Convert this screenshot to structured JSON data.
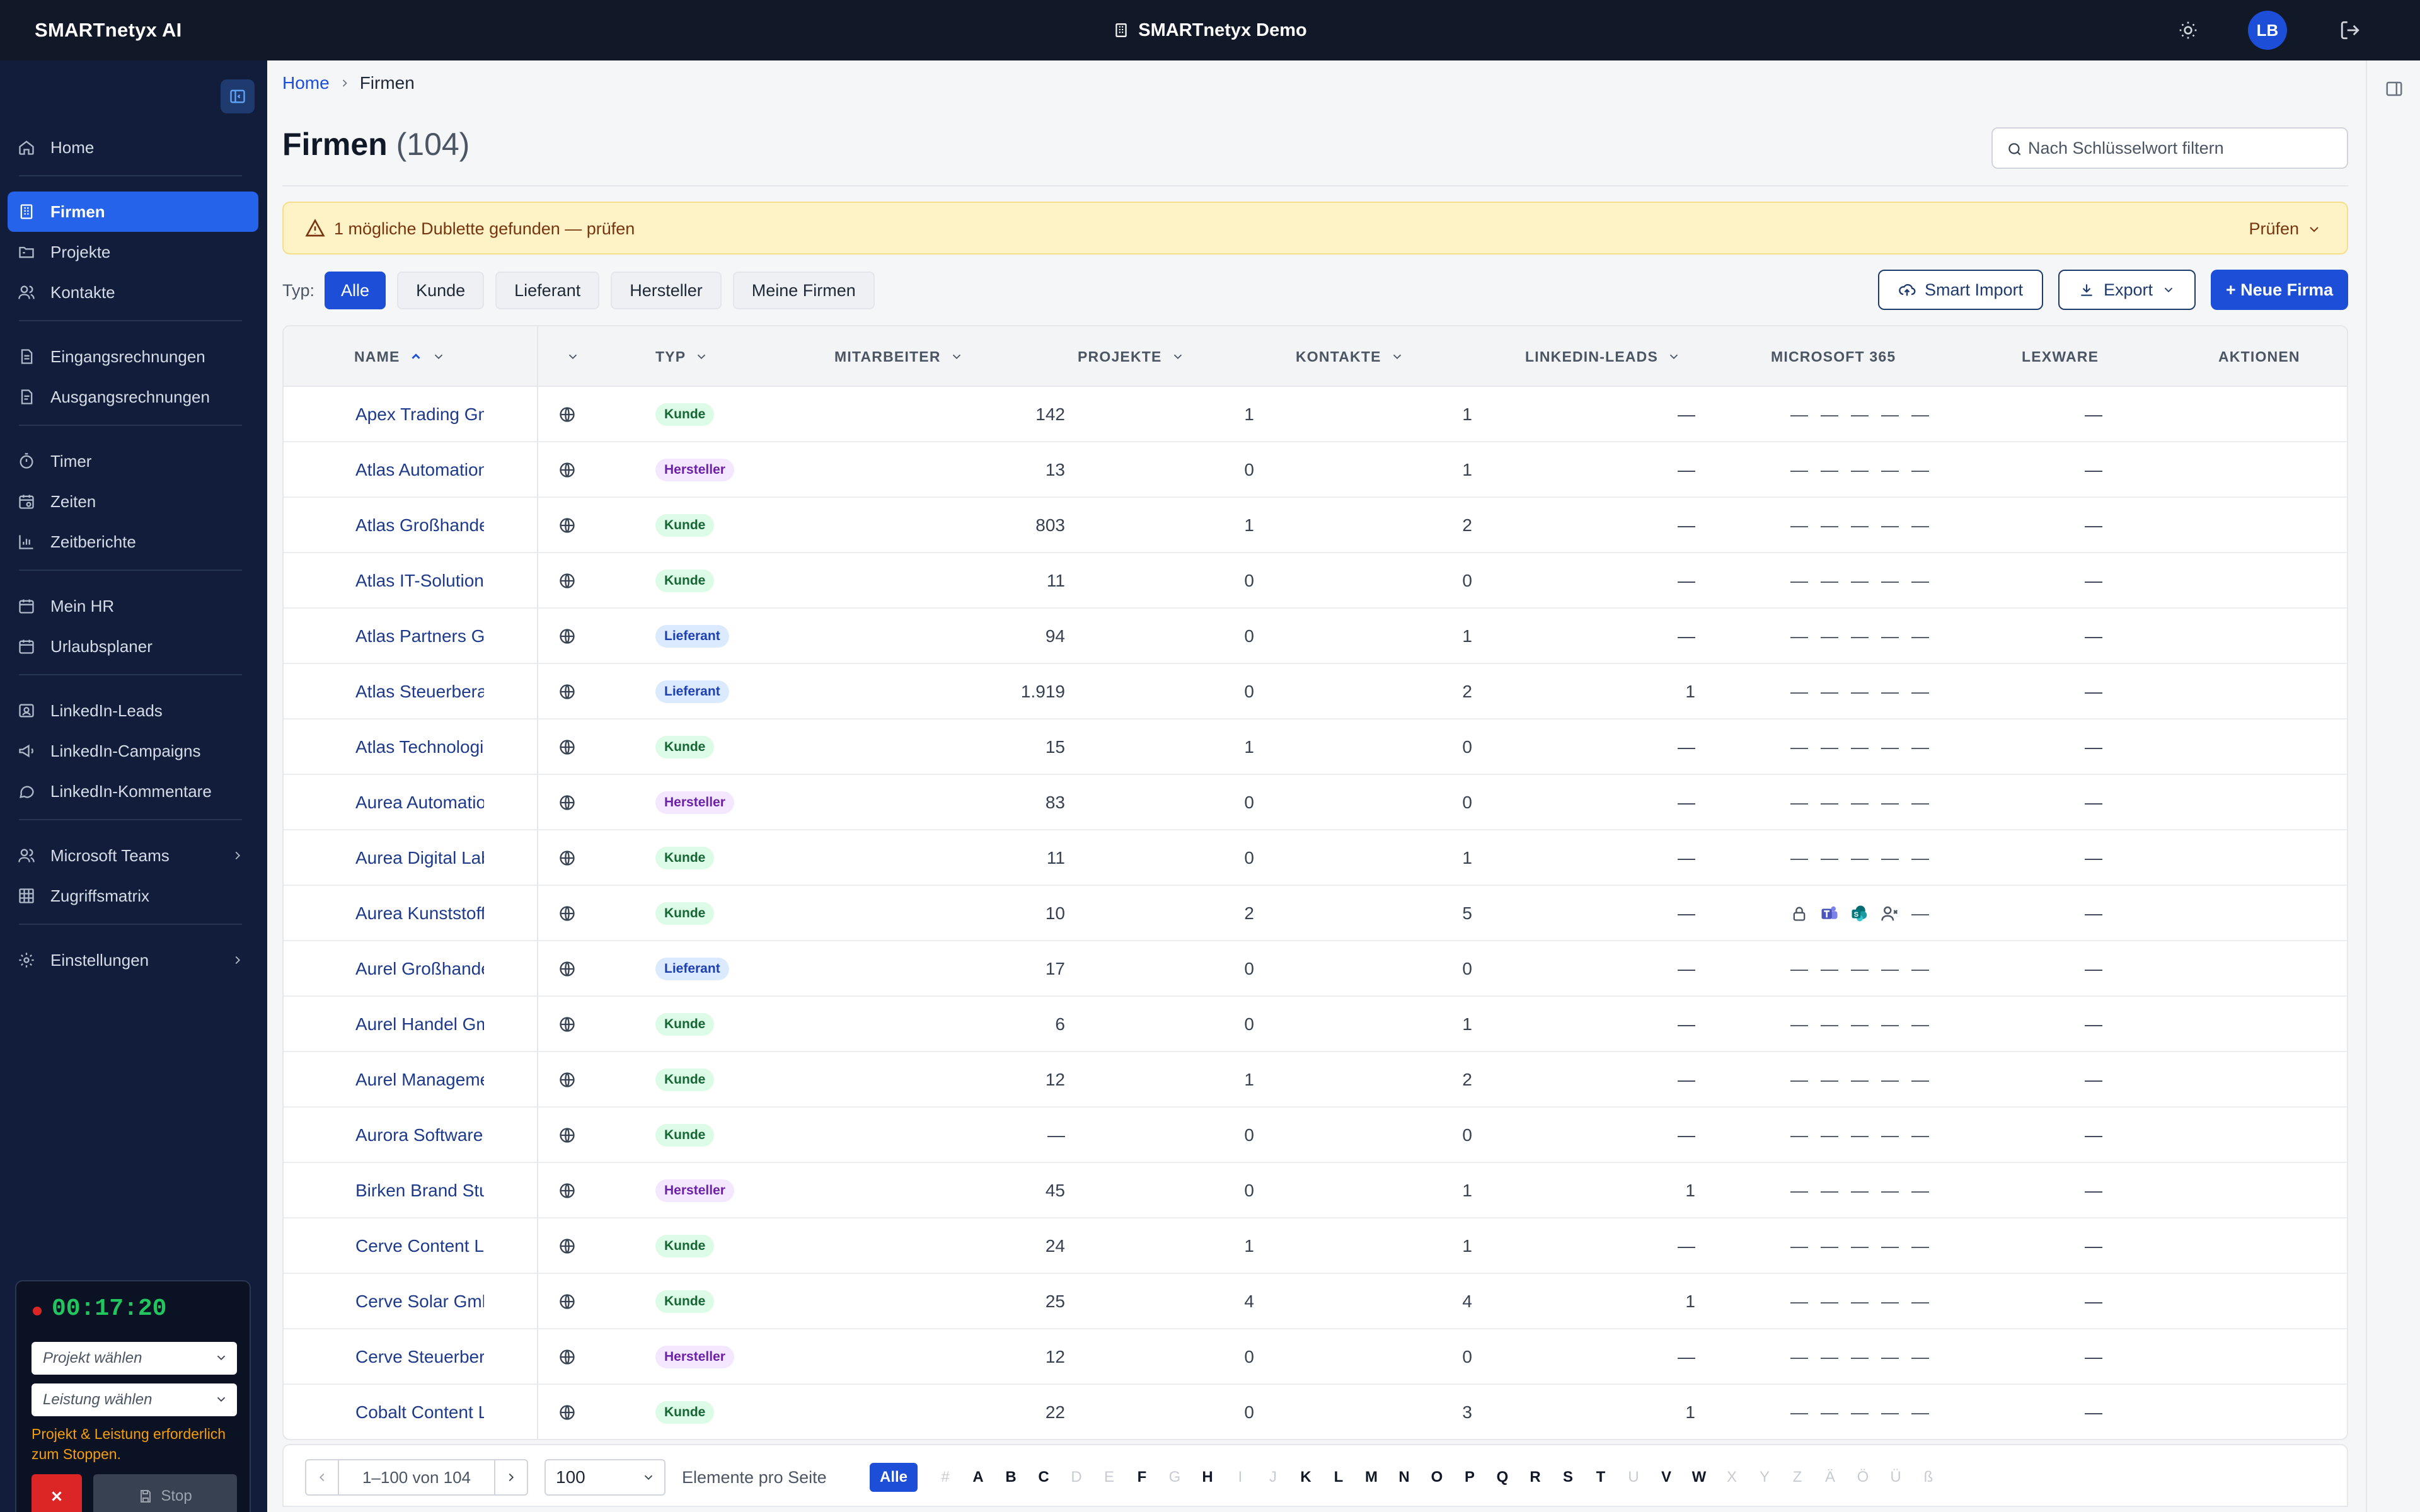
{
  "app": {
    "brand": "SMARTnetyx AI",
    "tenant": "SMARTnetyx Demo",
    "user_initials": "LB"
  },
  "sidebar": {
    "groups": [
      [
        {
          "label": "Home",
          "icon": "home-icon"
        }
      ],
      [
        {
          "label": "Firmen",
          "icon": "building-icon",
          "active": true
        },
        {
          "label": "Projekte",
          "icon": "folder-icon"
        },
        {
          "label": "Kontakte",
          "icon": "users-icon"
        }
      ],
      [
        {
          "label": "Eingangsrechnungen",
          "icon": "invoice-in-icon"
        },
        {
          "label": "Ausgangsrechnungen",
          "icon": "invoice-out-icon"
        }
      ],
      [
        {
          "label": "Timer",
          "icon": "stopwatch-icon"
        },
        {
          "label": "Zeiten",
          "icon": "calendar-clock-icon"
        },
        {
          "label": "Zeitberichte",
          "icon": "bar-chart-icon"
        }
      ],
      [
        {
          "label": "Mein HR",
          "icon": "calendar-icon"
        },
        {
          "label": "Urlaubsplaner",
          "icon": "calendar-icon"
        }
      ],
      [
        {
          "label": "LinkedIn-Leads",
          "icon": "contact-card-icon"
        },
        {
          "label": "LinkedIn-Campaigns",
          "icon": "megaphone-icon"
        },
        {
          "label": "LinkedIn-Kommentare",
          "icon": "comment-icon"
        }
      ],
      [
        {
          "label": "Microsoft Teams",
          "icon": "users-icon",
          "chevron": true
        },
        {
          "label": "Zugriffsmatrix",
          "icon": "grid-icon"
        }
      ],
      [
        {
          "label": "Einstellungen",
          "icon": "gear-icon",
          "chevron": true
        }
      ]
    ]
  },
  "timer": {
    "time": "00:17:20",
    "project_placeholder": "Projekt wählen",
    "service_placeholder": "Leistung wählen",
    "warning": "Projekt & Leistung erforderlich zum Stoppen.",
    "stop_label": "Stop"
  },
  "breadcrumb": {
    "home": "Home",
    "current": "Firmen"
  },
  "page": {
    "title": "Firmen",
    "count": "(104)"
  },
  "search": {
    "placeholder": "Nach Schlüsselwort filtern"
  },
  "alert": {
    "text": "1 mögliche Dublette gefunden — prüfen",
    "action": "Prüfen"
  },
  "filters": {
    "label": "Typ:",
    "options": [
      "Alle",
      "Kunde",
      "Lieferant",
      "Hersteller",
      "Meine Firmen"
    ],
    "active": "Alle"
  },
  "actions": {
    "smart_import": "Smart Import",
    "export": "Export",
    "new": "+ Neue Firma"
  },
  "columns": {
    "name": "NAME",
    "typ": "TYP",
    "mitarbeiter": "MITARBEITER",
    "projekte": "PROJEKTE",
    "kontakte": "KONTAKTE",
    "linkedin": "LINKEDIN-LEADS",
    "ms365": "MICROSOFT 365",
    "lexware": "LEXWARE",
    "aktionen": "AKTIONEN"
  },
  "badge_colors": {
    "Kunde": {
      "bg": "#dcfce7",
      "fg": "#166534"
    },
    "Hersteller": {
      "bg": "#f3e8ff",
      "fg": "#6b21a8"
    },
    "Lieferant": {
      "bg": "#dbeafe",
      "fg": "#1e40af"
    }
  },
  "rows": [
    {
      "name": "Apex Trading GmbH",
      "typ": "Kunde",
      "mitarbeiter": "142",
      "projekte": "1",
      "kontakte": "1",
      "linkedin": "—",
      "ms365": [
        "—",
        "—",
        "—",
        "—",
        "—"
      ],
      "lexware": "—"
    },
    {
      "name": "Atlas Automation GmbH",
      "typ": "Hersteller",
      "mitarbeiter": "13",
      "projekte": "0",
      "kontakte": "1",
      "linkedin": "—",
      "ms365": [
        "—",
        "—",
        "—",
        "—",
        "—"
      ],
      "lexware": "—"
    },
    {
      "name": "Atlas Großhandel GmbH",
      "typ": "Kunde",
      "mitarbeiter": "803",
      "projekte": "1",
      "kontakte": "2",
      "linkedin": "—",
      "ms365": [
        "—",
        "—",
        "—",
        "—",
        "—"
      ],
      "lexware": "—"
    },
    {
      "name": "Atlas IT-Solutions AG",
      "typ": "Kunde",
      "mitarbeiter": "11",
      "projekte": "0",
      "kontakte": "0",
      "linkedin": "—",
      "ms365": [
        "—",
        "—",
        "—",
        "—",
        "—"
      ],
      "lexware": "—"
    },
    {
      "name": "Atlas Partners GmbH",
      "typ": "Lieferant",
      "mitarbeiter": "94",
      "projekte": "0",
      "kontakte": "1",
      "linkedin": "—",
      "ms365": [
        "—",
        "—",
        "—",
        "—",
        "—"
      ],
      "lexware": "—"
    },
    {
      "name": "Atlas Steuerberatung",
      "typ": "Lieferant",
      "mitarbeiter": "1.919",
      "projekte": "0",
      "kontakte": "2",
      "linkedin": "1",
      "ms365": [
        "—",
        "—",
        "—",
        "—",
        "—"
      ],
      "lexware": "—"
    },
    {
      "name": "Atlas Technologies AG",
      "typ": "Kunde",
      "mitarbeiter": "15",
      "projekte": "1",
      "kontakte": "0",
      "linkedin": "—",
      "ms365": [
        "—",
        "—",
        "—",
        "—",
        "—"
      ],
      "lexware": "—"
    },
    {
      "name": "Aurea Automation AG",
      "typ": "Hersteller",
      "mitarbeiter": "83",
      "projekte": "0",
      "kontakte": "0",
      "linkedin": "—",
      "ms365": [
        "—",
        "—",
        "—",
        "—",
        "—"
      ],
      "lexware": "—"
    },
    {
      "name": "Aurea Digital Labs AG",
      "typ": "Kunde",
      "mitarbeiter": "11",
      "projekte": "0",
      "kontakte": "1",
      "linkedin": "—",
      "ms365": [
        "—",
        "—",
        "—",
        "—",
        "—"
      ],
      "lexware": "—"
    },
    {
      "name": "Aurea Kunststofftechnik",
      "typ": "Kunde",
      "mitarbeiter": "10",
      "projekte": "2",
      "kontakte": "5",
      "linkedin": "—",
      "ms365": [
        "lock-icon",
        "teams-icon",
        "sharepoint-icon",
        "user-x-icon",
        "—"
      ],
      "lexware": "—"
    },
    {
      "name": "Aurel Großhandel GmbH",
      "typ": "Lieferant",
      "mitarbeiter": "17",
      "projekte": "0",
      "kontakte": "0",
      "linkedin": "—",
      "ms365": [
        "—",
        "—",
        "—",
        "—",
        "—"
      ],
      "lexware": "—"
    },
    {
      "name": "Aurel Handel GmbH",
      "typ": "Kunde",
      "mitarbeiter": "6",
      "projekte": "0",
      "kontakte": "1",
      "linkedin": "—",
      "ms365": [
        "—",
        "—",
        "—",
        "—",
        "—"
      ],
      "lexware": "—"
    },
    {
      "name": "Aurel Management",
      "typ": "Kunde",
      "mitarbeiter": "12",
      "projekte": "1",
      "kontakte": "2",
      "linkedin": "—",
      "ms365": [
        "—",
        "—",
        "—",
        "—",
        "—"
      ],
      "lexware": "—"
    },
    {
      "name": "Aurora Software SE",
      "typ": "Kunde",
      "mitarbeiter": "—",
      "projekte": "0",
      "kontakte": "0",
      "linkedin": "—",
      "ms365": [
        "—",
        "—",
        "—",
        "—",
        "—"
      ],
      "lexware": "—"
    },
    {
      "name": "Birken Brand Studio",
      "typ": "Hersteller",
      "mitarbeiter": "45",
      "projekte": "0",
      "kontakte": "1",
      "linkedin": "1",
      "ms365": [
        "—",
        "—",
        "—",
        "—",
        "—"
      ],
      "lexware": "—"
    },
    {
      "name": "Cerve Content Lab GmbH",
      "typ": "Kunde",
      "mitarbeiter": "24",
      "projekte": "1",
      "kontakte": "1",
      "linkedin": "—",
      "ms365": [
        "—",
        "—",
        "—",
        "—",
        "—"
      ],
      "lexware": "—"
    },
    {
      "name": "Cerve Solar GmbH",
      "typ": "Kunde",
      "mitarbeiter": "25",
      "projekte": "4",
      "kontakte": "4",
      "linkedin": "1",
      "ms365": [
        "—",
        "—",
        "—",
        "—",
        "—"
      ],
      "lexware": "—"
    },
    {
      "name": "Cerve Steuerberatung",
      "typ": "Hersteller",
      "mitarbeiter": "12",
      "projekte": "0",
      "kontakte": "0",
      "linkedin": "—",
      "ms365": [
        "—",
        "—",
        "—",
        "—",
        "—"
      ],
      "lexware": "—"
    },
    {
      "name": "Cobalt Content Lab",
      "typ": "Kunde",
      "mitarbeiter": "22",
      "projekte": "0",
      "kontakte": "3",
      "linkedin": "1",
      "ms365": [
        "—",
        "—",
        "—",
        "—",
        "—"
      ],
      "lexware": "—"
    }
  ],
  "pager": {
    "range": "1–100 von 104",
    "page_size": "100",
    "per_page_label": "Elemente pro Seite",
    "all_label": "Alle",
    "letters": [
      "#",
      "A",
      "B",
      "C",
      "D",
      "E",
      "F",
      "G",
      "H",
      "I",
      "J",
      "K",
      "L",
      "M",
      "N",
      "O",
      "P",
      "Q",
      "R",
      "S",
      "T",
      "U",
      "V",
      "W",
      "X",
      "Y",
      "Z",
      "Ä",
      "Ö",
      "Ü",
      "ß"
    ],
    "enabled_letters": [
      "A",
      "B",
      "C",
      "F",
      "H",
      "K",
      "L",
      "M",
      "N",
      "O",
      "P",
      "Q",
      "R",
      "S",
      "T",
      "V",
      "W"
    ]
  }
}
